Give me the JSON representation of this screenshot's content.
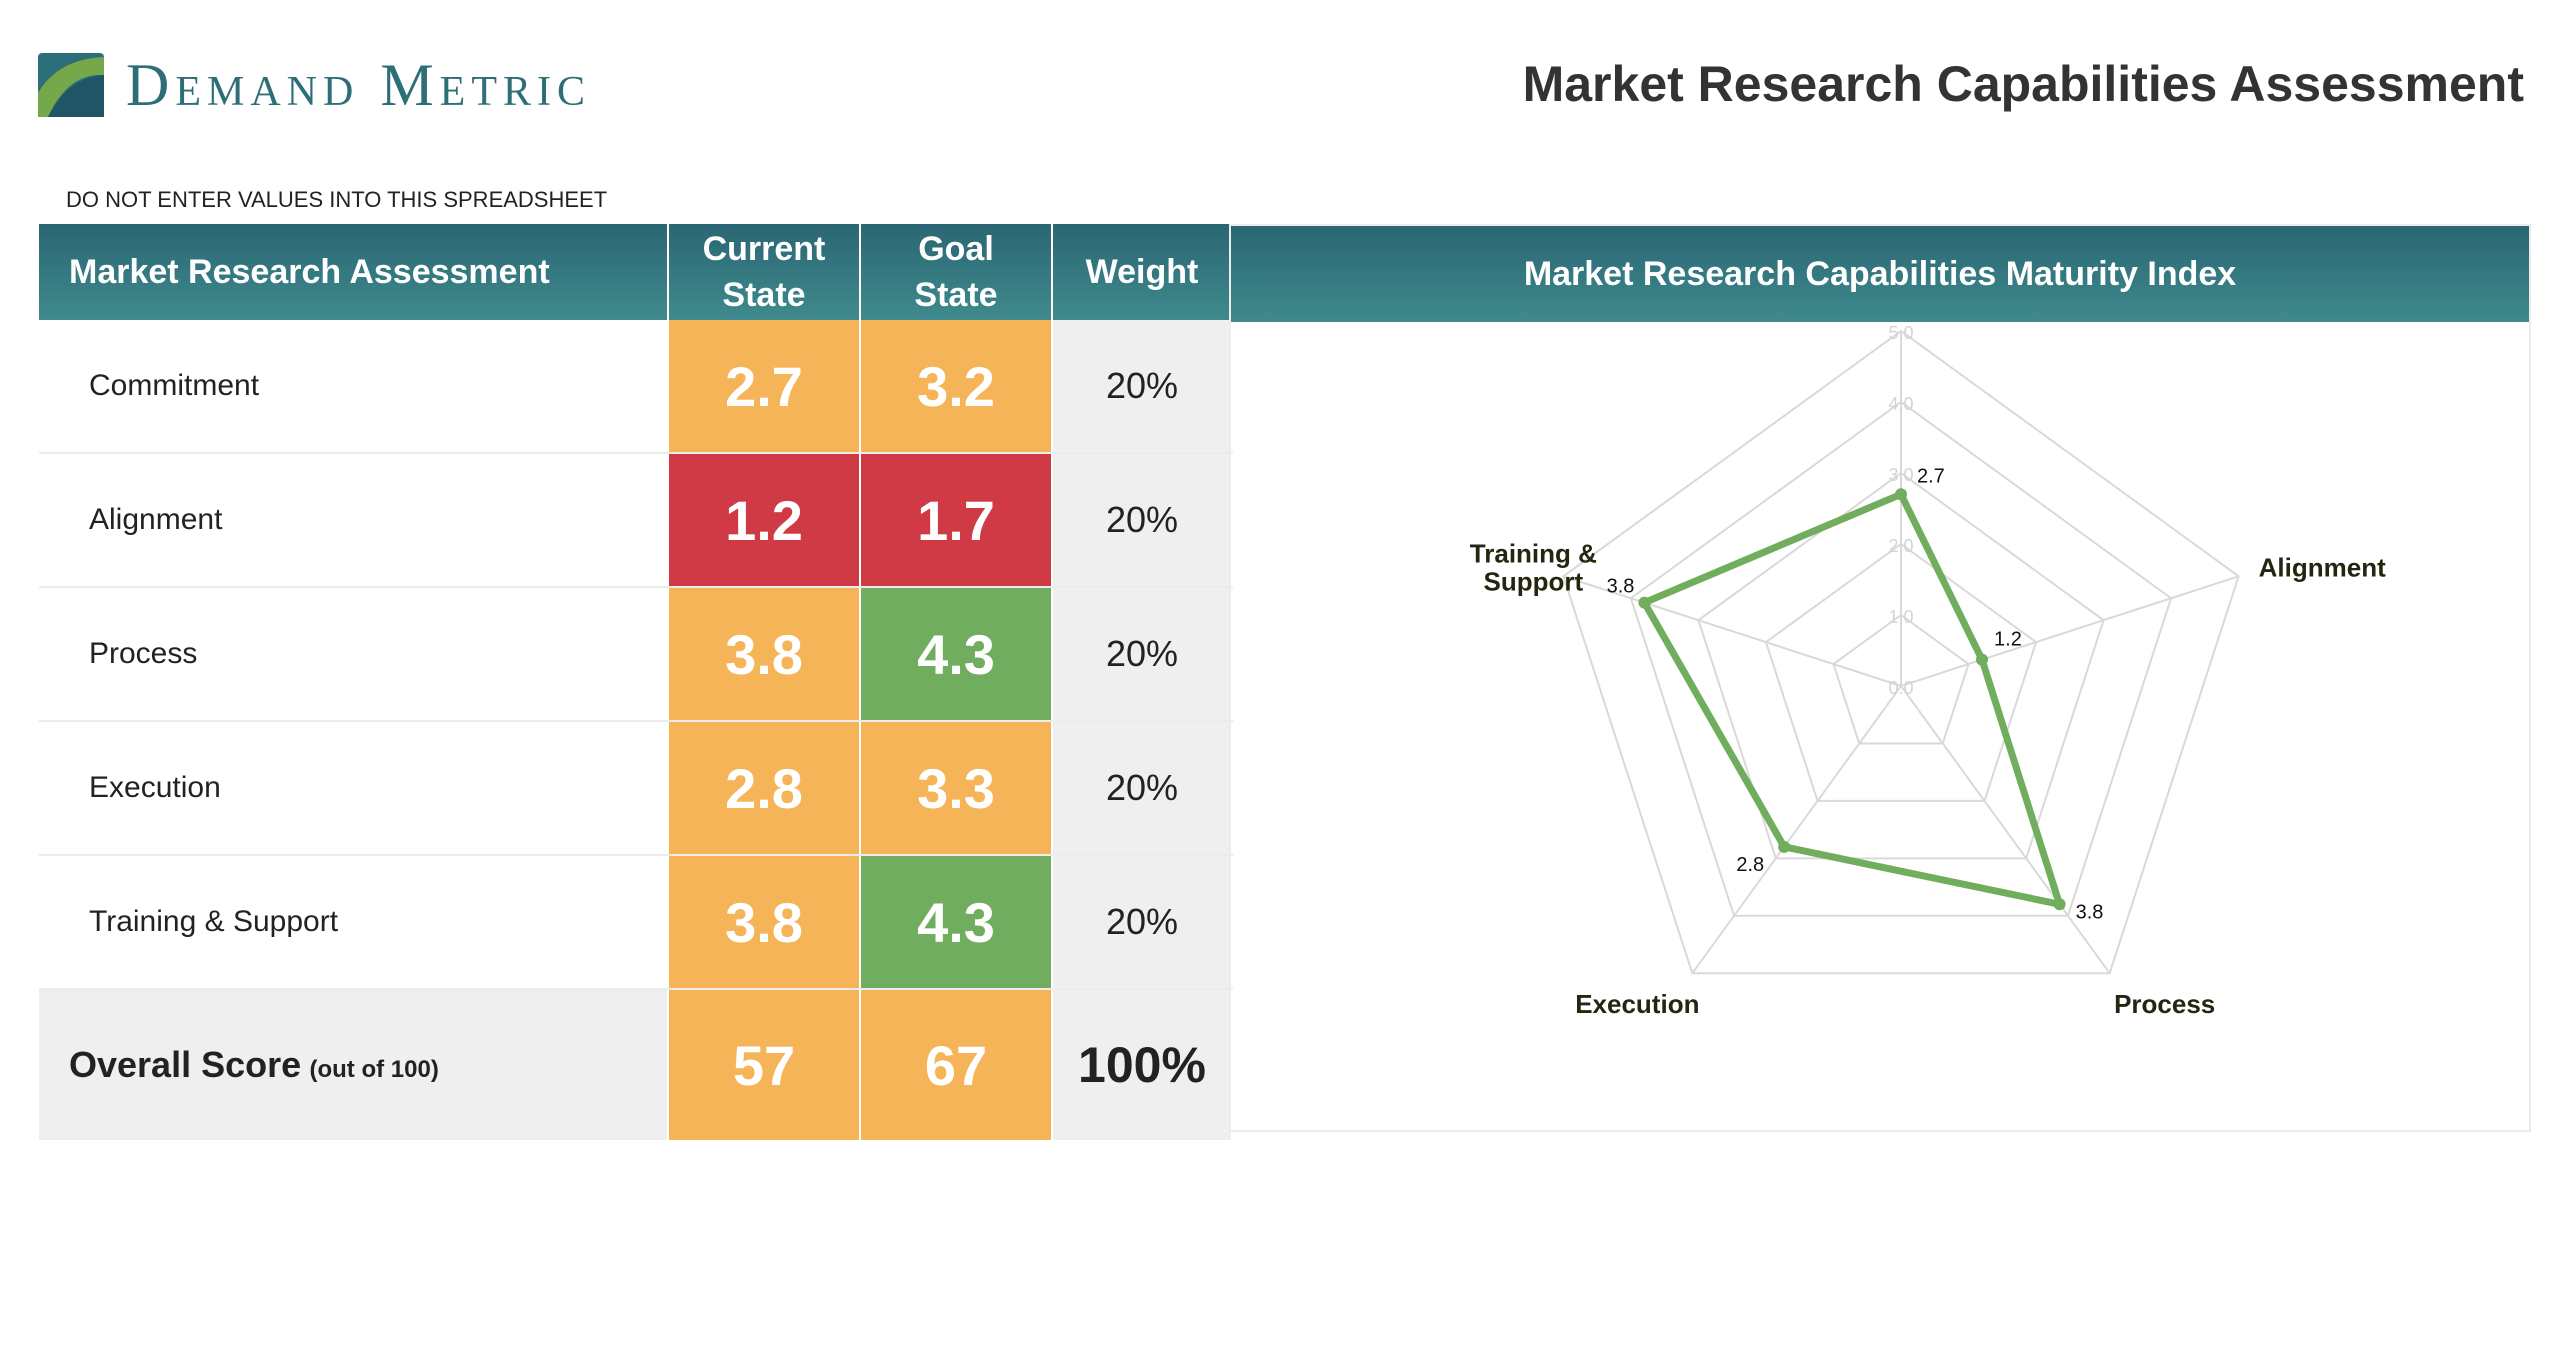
{
  "brand": {
    "name": "Demand Metric"
  },
  "page_title": "Market Research Capabilities Assessment",
  "note": "DO NOT ENTER VALUES INTO THIS SPREADSHEET",
  "table": {
    "headers": {
      "assessment": "Market Research Assessment",
      "current_line1": "Current",
      "current_line2": "State",
      "goal_line1": "Goal",
      "goal_line2": "State",
      "weight": "Weight"
    },
    "rows": [
      {
        "label": "Commitment",
        "current": "2.7",
        "goal": "3.2",
        "weight": "20%",
        "current_color": "#f5b458",
        "goal_color": "#f5b458"
      },
      {
        "label": "Alignment",
        "current": "1.2",
        "goal": "1.7",
        "weight": "20%",
        "current_color": "#d03a44",
        "goal_color": "#d03a44"
      },
      {
        "label": "Process",
        "current": "3.8",
        "goal": "4.3",
        "weight": "20%",
        "current_color": "#f5b458",
        "goal_color": "#71ad5e"
      },
      {
        "label": "Execution",
        "current": "2.8",
        "goal": "3.3",
        "weight": "20%",
        "current_color": "#f5b458",
        "goal_color": "#f5b458"
      },
      {
        "label": "Training & Support",
        "current": "3.8",
        "goal": "4.3",
        "weight": "20%",
        "current_color": "#f5b458",
        "goal_color": "#71ad5e"
      }
    ],
    "overall": {
      "label": "Overall Score",
      "sub": "(out of 100)",
      "current": "57",
      "goal": "67",
      "weight": "100%",
      "current_color": "#f5b458",
      "goal_color": "#f5b458"
    }
  },
  "chart_title": "Market Research Capabilities Maturity Index",
  "chart_data": {
    "type": "radar",
    "title": "Market Research Capabilities Maturity Index",
    "categories": [
      "Commitment",
      "Alignment",
      "Process",
      "Execution",
      "Training & Support"
    ],
    "series": [
      {
        "values": [
          2.7,
          1.2,
          3.8,
          2.8,
          3.8
        ],
        "color": "#70ad5d"
      }
    ],
    "ticks": [
      "0.0",
      "1.0",
      "2.0",
      "3.0",
      "4.0",
      "5.0"
    ],
    "range": [
      0,
      5
    ],
    "legend": "none",
    "grid": true
  }
}
